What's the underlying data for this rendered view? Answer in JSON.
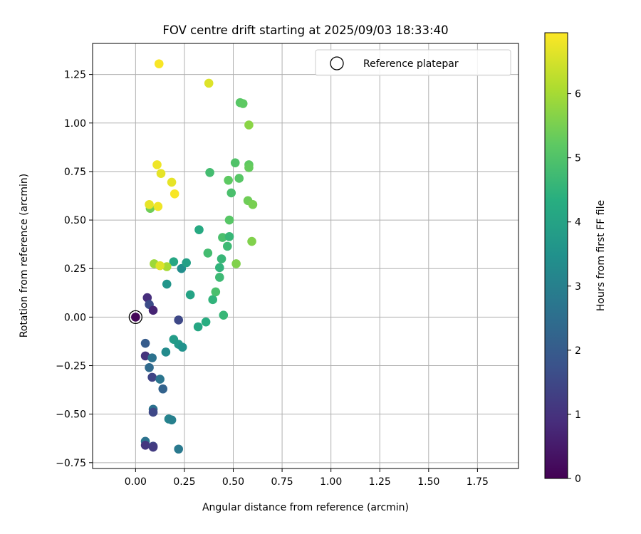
{
  "chart_data": {
    "type": "scatter",
    "title": "FOV centre drift starting at 2025/09/03 18:33:40",
    "xlabel": "Angular distance from reference (arcmin)",
    "ylabel": "Rotation from reference (arcmin)",
    "xlim": [
      -0.22,
      1.96
    ],
    "ylim": [
      -0.78,
      1.41
    ],
    "xticks": [
      "0.00",
      "0.25",
      "0.50",
      "0.75",
      "1.00",
      "1.25",
      "1.50",
      "1.75"
    ],
    "xtick_values": [
      0,
      0.25,
      0.5,
      0.75,
      1.0,
      1.25,
      1.5,
      1.75
    ],
    "yticks": [
      "−0.75",
      "−0.50",
      "−0.25",
      "0.00",
      "0.25",
      "0.50",
      "0.75",
      "1.00",
      "1.25"
    ],
    "ytick_values": [
      -0.75,
      -0.5,
      -0.25,
      0,
      0.25,
      0.5,
      0.75,
      1.0,
      1.25
    ],
    "grid": true,
    "legend": {
      "label": "Reference platepar",
      "position": "top-right"
    },
    "reference_point": {
      "x": 0,
      "y": 0
    },
    "colorbar": {
      "label": "Hours from first FF file",
      "min": 0,
      "max": 6.95,
      "ticks": [
        "0",
        "1",
        "2",
        "3",
        "4",
        "5",
        "6"
      ],
      "tick_values": [
        0,
        1,
        2,
        3,
        4,
        5,
        6
      ],
      "colormap": "viridis"
    },
    "points": [
      {
        "x": 0.0,
        "y": 0.0,
        "h": 0.1
      },
      {
        "x": 0.06,
        "y": 0.1,
        "h": 0.9
      },
      {
        "x": 0.07,
        "y": 0.065,
        "h": 1.6
      },
      {
        "x": 0.09,
        "y": 0.035,
        "h": 0.7
      },
      {
        "x": 0.22,
        "y": -0.015,
        "h": 1.5
      },
      {
        "x": 0.05,
        "y": -0.135,
        "h": 2.0
      },
      {
        "x": 0.05,
        "y": -0.2,
        "h": 1.0
      },
      {
        "x": 0.085,
        "y": -0.21,
        "h": 2.6
      },
      {
        "x": 0.07,
        "y": -0.26,
        "h": 2.4
      },
      {
        "x": 0.085,
        "y": -0.31,
        "h": 1.4
      },
      {
        "x": 0.125,
        "y": -0.32,
        "h": 2.7
      },
      {
        "x": 0.14,
        "y": -0.37,
        "h": 2.2
      },
      {
        "x": 0.09,
        "y": -0.475,
        "h": 2.6
      },
      {
        "x": 0.09,
        "y": -0.49,
        "h": 1.5
      },
      {
        "x": 0.17,
        "y": -0.525,
        "h": 3.1
      },
      {
        "x": 0.185,
        "y": -0.53,
        "h": 3.0
      },
      {
        "x": 0.05,
        "y": -0.64,
        "h": 2.6
      },
      {
        "x": 0.05,
        "y": -0.66,
        "h": 1.1
      },
      {
        "x": 0.09,
        "y": -0.665,
        "h": 1.5
      },
      {
        "x": 0.09,
        "y": -0.67,
        "h": 1.2
      },
      {
        "x": 0.22,
        "y": -0.68,
        "h": 2.8
      },
      {
        "x": 0.155,
        "y": -0.18,
        "h": 3.3
      },
      {
        "x": 0.195,
        "y": -0.115,
        "h": 3.8
      },
      {
        "x": 0.22,
        "y": -0.14,
        "h": 3.7
      },
      {
        "x": 0.24,
        "y": -0.155,
        "h": 3.5
      },
      {
        "x": 0.16,
        "y": 0.17,
        "h": 3.6
      },
      {
        "x": 0.235,
        "y": 0.25,
        "h": 3.4
      },
      {
        "x": 0.26,
        "y": 0.28,
        "h": 3.9
      },
      {
        "x": 0.195,
        "y": 0.285,
        "h": 4.1
      },
      {
        "x": 0.28,
        "y": 0.115,
        "h": 4.0
      },
      {
        "x": 0.32,
        "y": -0.05,
        "h": 4.1
      },
      {
        "x": 0.36,
        "y": -0.025,
        "h": 4.3
      },
      {
        "x": 0.395,
        "y": 0.09,
        "h": 4.5
      },
      {
        "x": 0.41,
        "y": 0.13,
        "h": 4.9
      },
      {
        "x": 0.45,
        "y": 0.01,
        "h": 4.6
      },
      {
        "x": 0.43,
        "y": 0.205,
        "h": 4.7
      },
      {
        "x": 0.44,
        "y": 0.3,
        "h": 4.6
      },
      {
        "x": 0.43,
        "y": 0.255,
        "h": 4.5
      },
      {
        "x": 0.37,
        "y": 0.33,
        "h": 4.8
      },
      {
        "x": 0.325,
        "y": 0.45,
        "h": 4.2
      },
      {
        "x": 0.47,
        "y": 0.365,
        "h": 4.7
      },
      {
        "x": 0.445,
        "y": 0.41,
        "h": 4.9
      },
      {
        "x": 0.48,
        "y": 0.415,
        "h": 4.6
      },
      {
        "x": 0.48,
        "y": 0.5,
        "h": 5.1
      },
      {
        "x": 0.49,
        "y": 0.64,
        "h": 4.9
      },
      {
        "x": 0.475,
        "y": 0.705,
        "h": 5.2
      },
      {
        "x": 0.38,
        "y": 0.745,
        "h": 4.8
      },
      {
        "x": 0.51,
        "y": 0.795,
        "h": 5.0
      },
      {
        "x": 0.53,
        "y": 0.715,
        "h": 5.1
      },
      {
        "x": 0.58,
        "y": 0.785,
        "h": 5.2
      },
      {
        "x": 0.58,
        "y": 0.77,
        "h": 5.3
      },
      {
        "x": 0.575,
        "y": 0.6,
        "h": 5.4
      },
      {
        "x": 0.6,
        "y": 0.58,
        "h": 5.5
      },
      {
        "x": 0.595,
        "y": 0.39,
        "h": 5.6
      },
      {
        "x": 0.515,
        "y": 0.275,
        "h": 5.6
      },
      {
        "x": 0.58,
        "y": 0.99,
        "h": 5.7
      },
      {
        "x": 0.535,
        "y": 1.105,
        "h": 5.1
      },
      {
        "x": 0.55,
        "y": 1.1,
        "h": 5.2
      },
      {
        "x": 0.075,
        "y": 0.56,
        "h": 5.4
      },
      {
        "x": 0.095,
        "y": 0.275,
        "h": 5.9
      },
      {
        "x": 0.16,
        "y": 0.26,
        "h": 6.0
      },
      {
        "x": 0.125,
        "y": 0.265,
        "h": 6.6
      },
      {
        "x": 0.07,
        "y": 0.58,
        "h": 6.7
      },
      {
        "x": 0.115,
        "y": 0.57,
        "h": 6.8
      },
      {
        "x": 0.11,
        "y": 0.785,
        "h": 6.8
      },
      {
        "x": 0.13,
        "y": 0.74,
        "h": 6.7
      },
      {
        "x": 0.185,
        "y": 0.695,
        "h": 6.7
      },
      {
        "x": 0.2,
        "y": 0.635,
        "h": 6.9
      },
      {
        "x": 0.375,
        "y": 1.205,
        "h": 6.6
      },
      {
        "x": 0.12,
        "y": 1.305,
        "h": 6.9
      }
    ]
  }
}
